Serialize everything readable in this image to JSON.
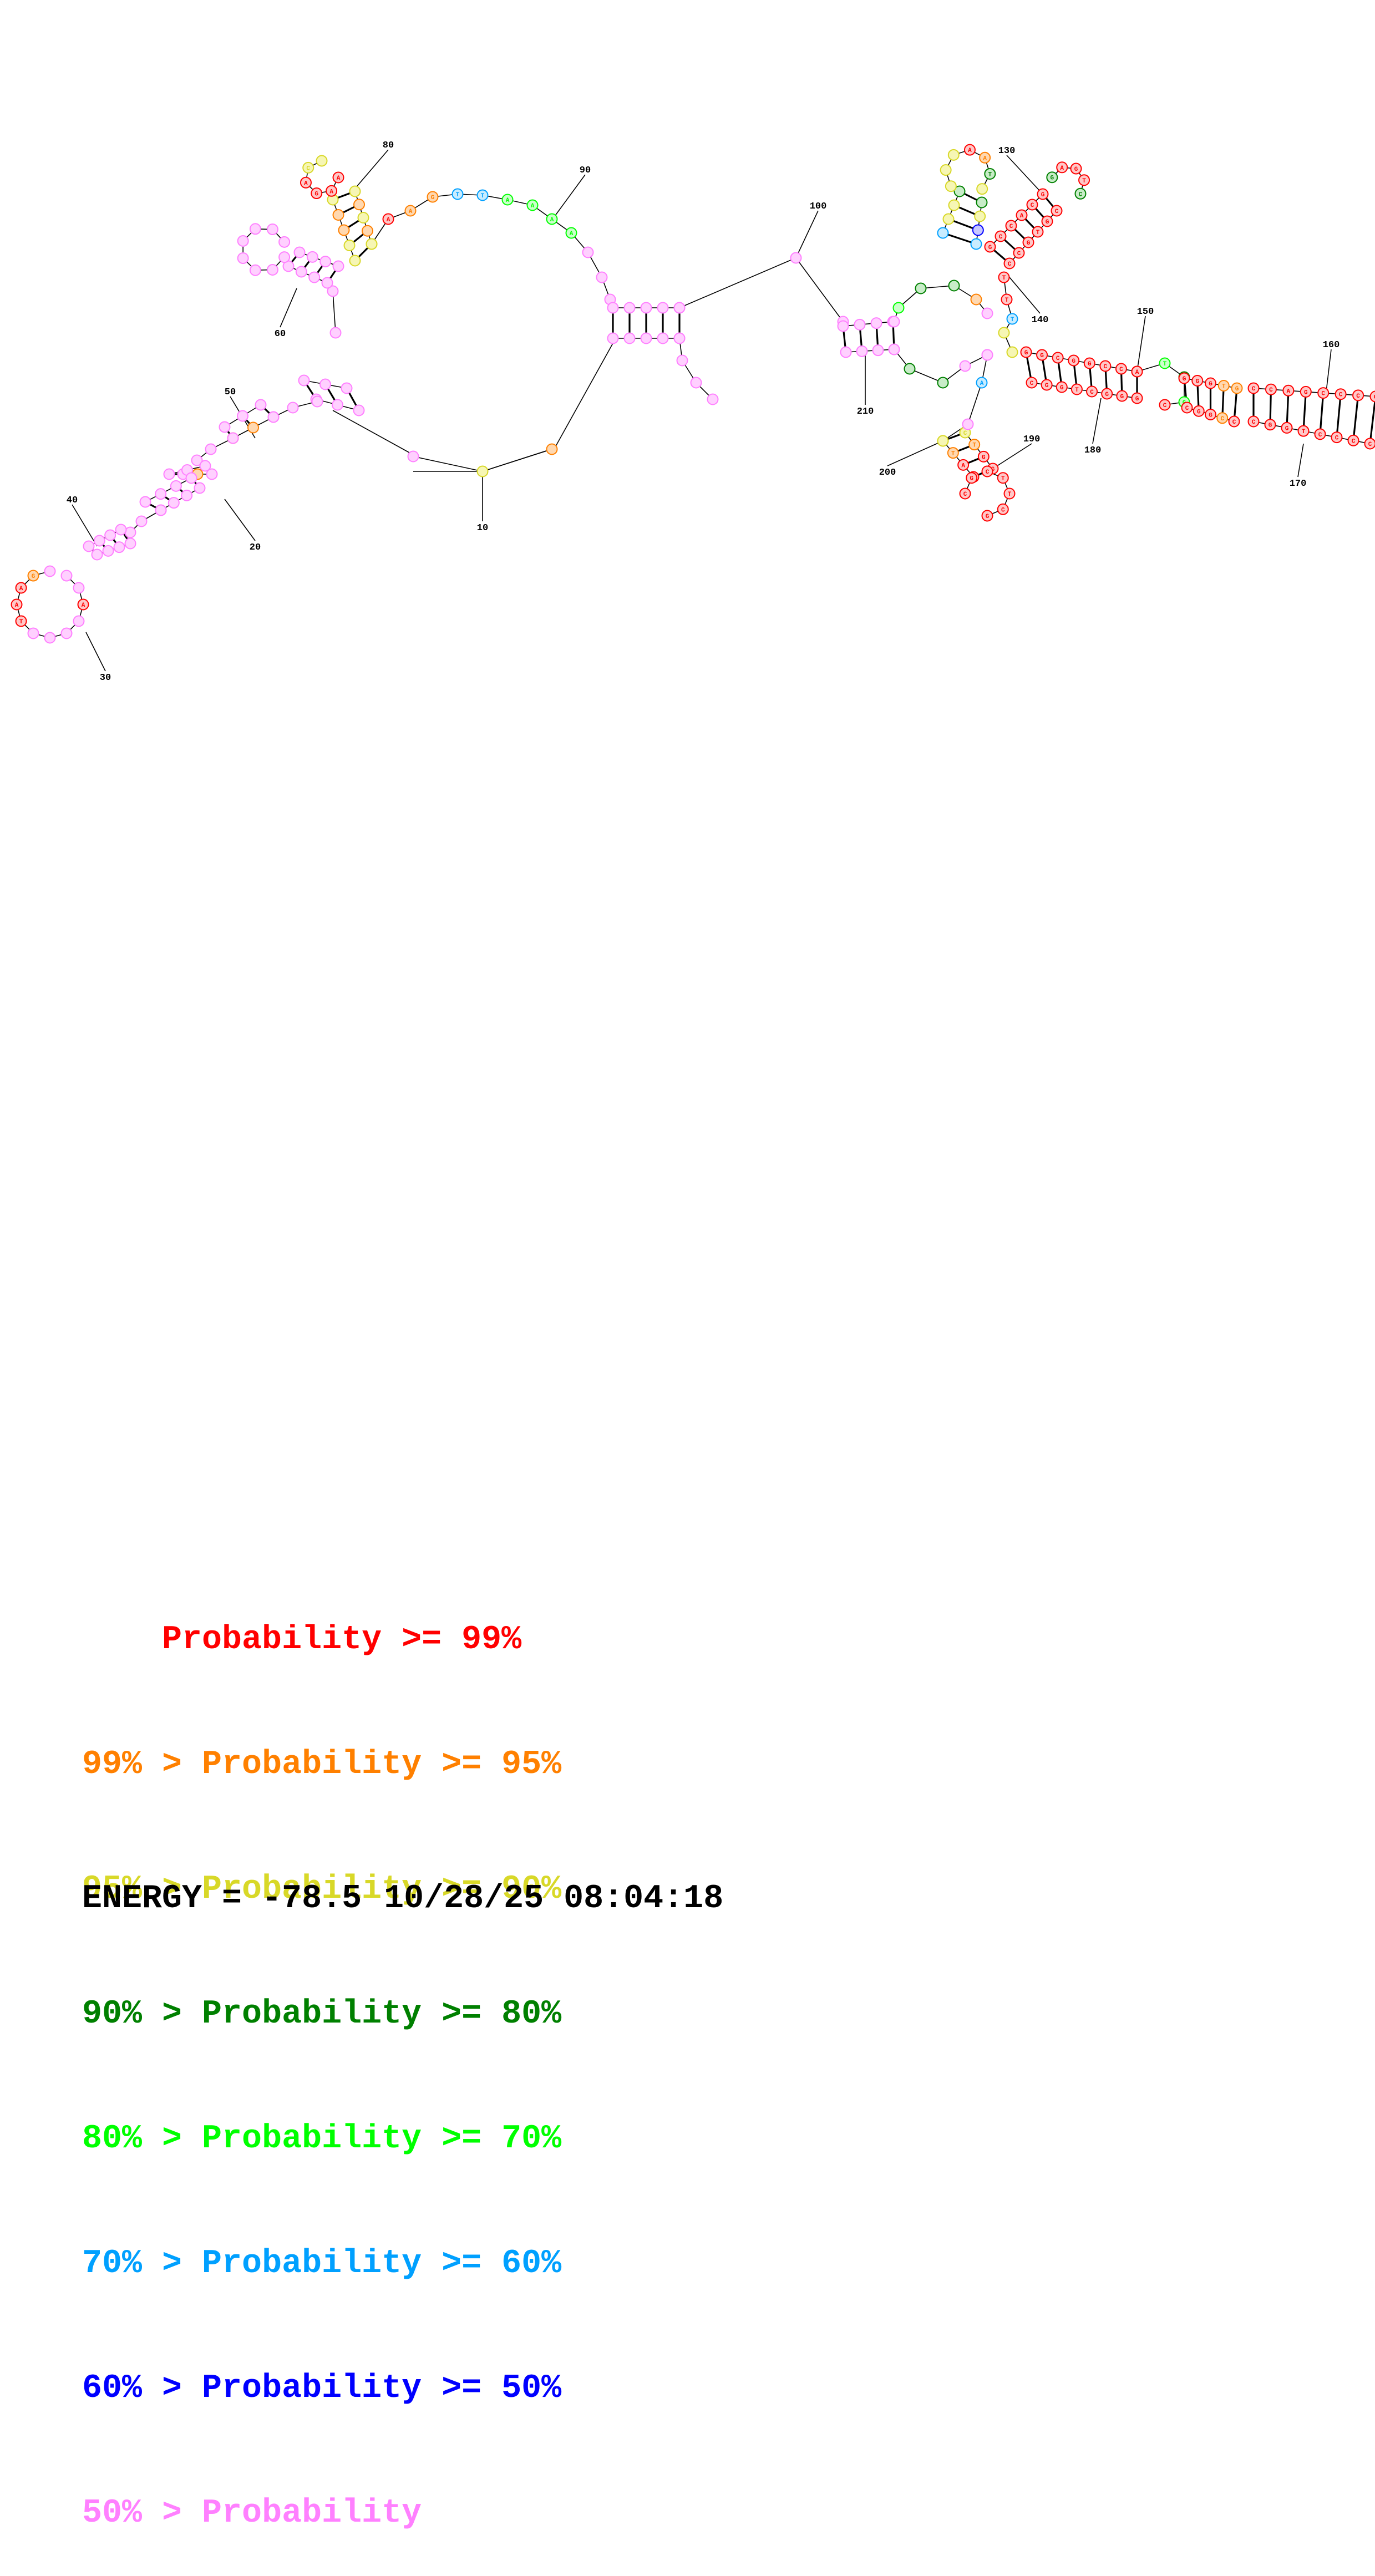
{
  "diagram": {
    "position_labels": [
      "10",
      "20",
      "30",
      "40",
      "50",
      "60",
      "80",
      "90",
      "100",
      "130",
      "140",
      "150",
      "160",
      "170",
      "180",
      "190",
      "200",
      "210"
    ]
  },
  "legend": {
    "rows": [
      {
        "prefix": "    ",
        "text": "Probability >= 99%",
        "color": "#ff0000"
      },
      {
        "prefix": "99% > ",
        "text": "Probability >= 95%",
        "color": "#ff8000"
      },
      {
        "prefix": "95% > ",
        "text": "Probability >= 90%",
        "color": "#d8d828"
      },
      {
        "prefix": "90% > ",
        "text": "Probability >= 80%",
        "color": "#008000"
      },
      {
        "prefix": "80% > ",
        "text": "Probability >= 70%",
        "color": "#00ff00"
      },
      {
        "prefix": "70% > ",
        "text": "Probability >= 60%",
        "color": "#00a0ff"
      },
      {
        "prefix": "60% > ",
        "text": "Probability >= 50%",
        "color": "#0000ff"
      },
      {
        "prefix": "50% > ",
        "text": "Probability",
        "color": "#ff80ff"
      }
    ]
  },
  "footer": {
    "energy": "ENERGY = -78.5",
    "timestamp": "10/28/25 08:04:18"
  }
}
